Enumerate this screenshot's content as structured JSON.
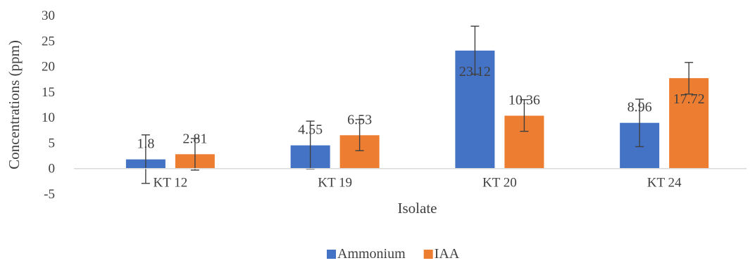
{
  "chart_data": {
    "type": "bar",
    "title": "",
    "xlabel": "Isolate",
    "ylabel": "Concentrations (ppm)",
    "categories": [
      "KT 12",
      "KT 19",
      "KT 20",
      "KT 24"
    ],
    "ylim": [
      -5,
      30
    ],
    "yticks": [
      30,
      25,
      20,
      15,
      10,
      5,
      0,
      -5
    ],
    "ytick_labels": [
      "30",
      "25",
      "20",
      "15",
      "10",
      "5",
      "0",
      "-5"
    ],
    "grid": false,
    "legend_position": "bottom",
    "series": [
      {
        "name": "Ammonium",
        "color": "#4472C4",
        "values": [
          1.8,
          4.55,
          23.12,
          8.96
        ],
        "labels": [
          "1.8",
          "4.55",
          "23.12",
          "8.96"
        ],
        "error_low": [
          -2.9,
          -0.1,
          18.5,
          4.3
        ],
        "error_high": [
          6.6,
          9.3,
          27.9,
          13.6
        ]
      },
      {
        "name": "IAA",
        "color": "#ED7D31",
        "values": [
          2.81,
          6.53,
          10.36,
          17.72
        ],
        "labels": [
          "2.81",
          "6.53",
          "10.36",
          "17.72"
        ],
        "error_low": [
          -0.3,
          3.5,
          7.3,
          14.6
        ],
        "error_high": [
          5.9,
          9.6,
          13.5,
          20.8
        ]
      }
    ]
  }
}
